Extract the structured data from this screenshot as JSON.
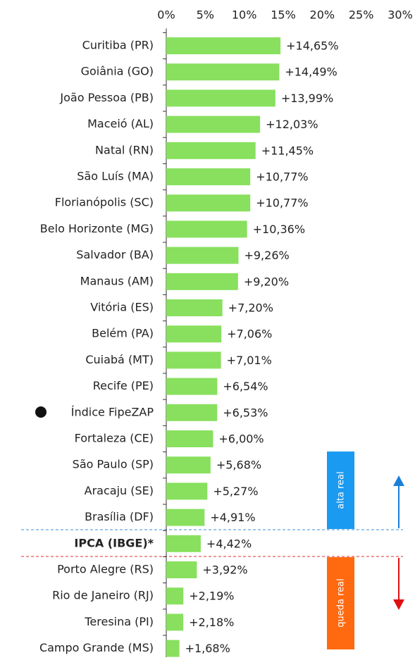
{
  "chart_data": {
    "type": "bar",
    "orientation": "horizontal",
    "categories": [
      "Curitiba (PR)",
      "Goiânia (GO)",
      "João Pessoa (PB)",
      "Maceió (AL)",
      "Natal (RN)",
      "São Luís (MA)",
      "Florianópolis (SC)",
      "Belo Horizonte (MG)",
      "Salvador (BA)",
      "Manaus (AM)",
      "Vitória (ES)",
      "Belém (PA)",
      "Cuiabá (MT)",
      "Recife (PE)",
      "Índice FipeZAP",
      "Fortaleza (CE)",
      "São Paulo (SP)",
      "Aracaju (SE)",
      "Brasília (DF)",
      "IPCA (IBGE)*",
      "Porto Alegre (RS)",
      "Rio de Janeiro (RJ)",
      "Teresina (PI)",
      "Campo Grande (MS)"
    ],
    "values": [
      14.65,
      14.49,
      13.99,
      12.03,
      11.45,
      10.77,
      10.77,
      10.36,
      9.26,
      9.2,
      7.2,
      7.06,
      7.01,
      6.54,
      6.53,
      6.0,
      5.68,
      5.27,
      4.91,
      4.42,
      3.92,
      2.19,
      2.18,
      1.68
    ],
    "value_labels": [
      "+14,65%",
      "+14,49%",
      "+13,99%",
      "+12,03%",
      "+11,45%",
      "+10,77%",
      "+10,77%",
      "+10,36%",
      "+9,26%",
      "+9,20%",
      "+7,20%",
      "+7,06%",
      "+7,01%",
      "+6,54%",
      "+6,53%",
      "+6,00%",
      "+5,68%",
      "+5,27%",
      "+4,91%",
      "+4,42%",
      "+3,92%",
      "+2,19%",
      "+2,18%",
      "+1,68%"
    ],
    "color": "#88e05e",
    "xlim": [
      0,
      30
    ],
    "xticks": [
      {
        "value": 0,
        "label": "0%"
      },
      {
        "value": 5,
        "label": "5%"
      },
      {
        "value": 10,
        "label": "10%"
      },
      {
        "value": 15,
        "label": "15%"
      },
      {
        "value": 20,
        "label": "20%"
      },
      {
        "value": 25,
        "label": "25%"
      },
      {
        "value": 30,
        "label": "30%"
      }
    ],
    "annotations": [
      "alta real",
      "queda real"
    ],
    "grid": false
  }
}
